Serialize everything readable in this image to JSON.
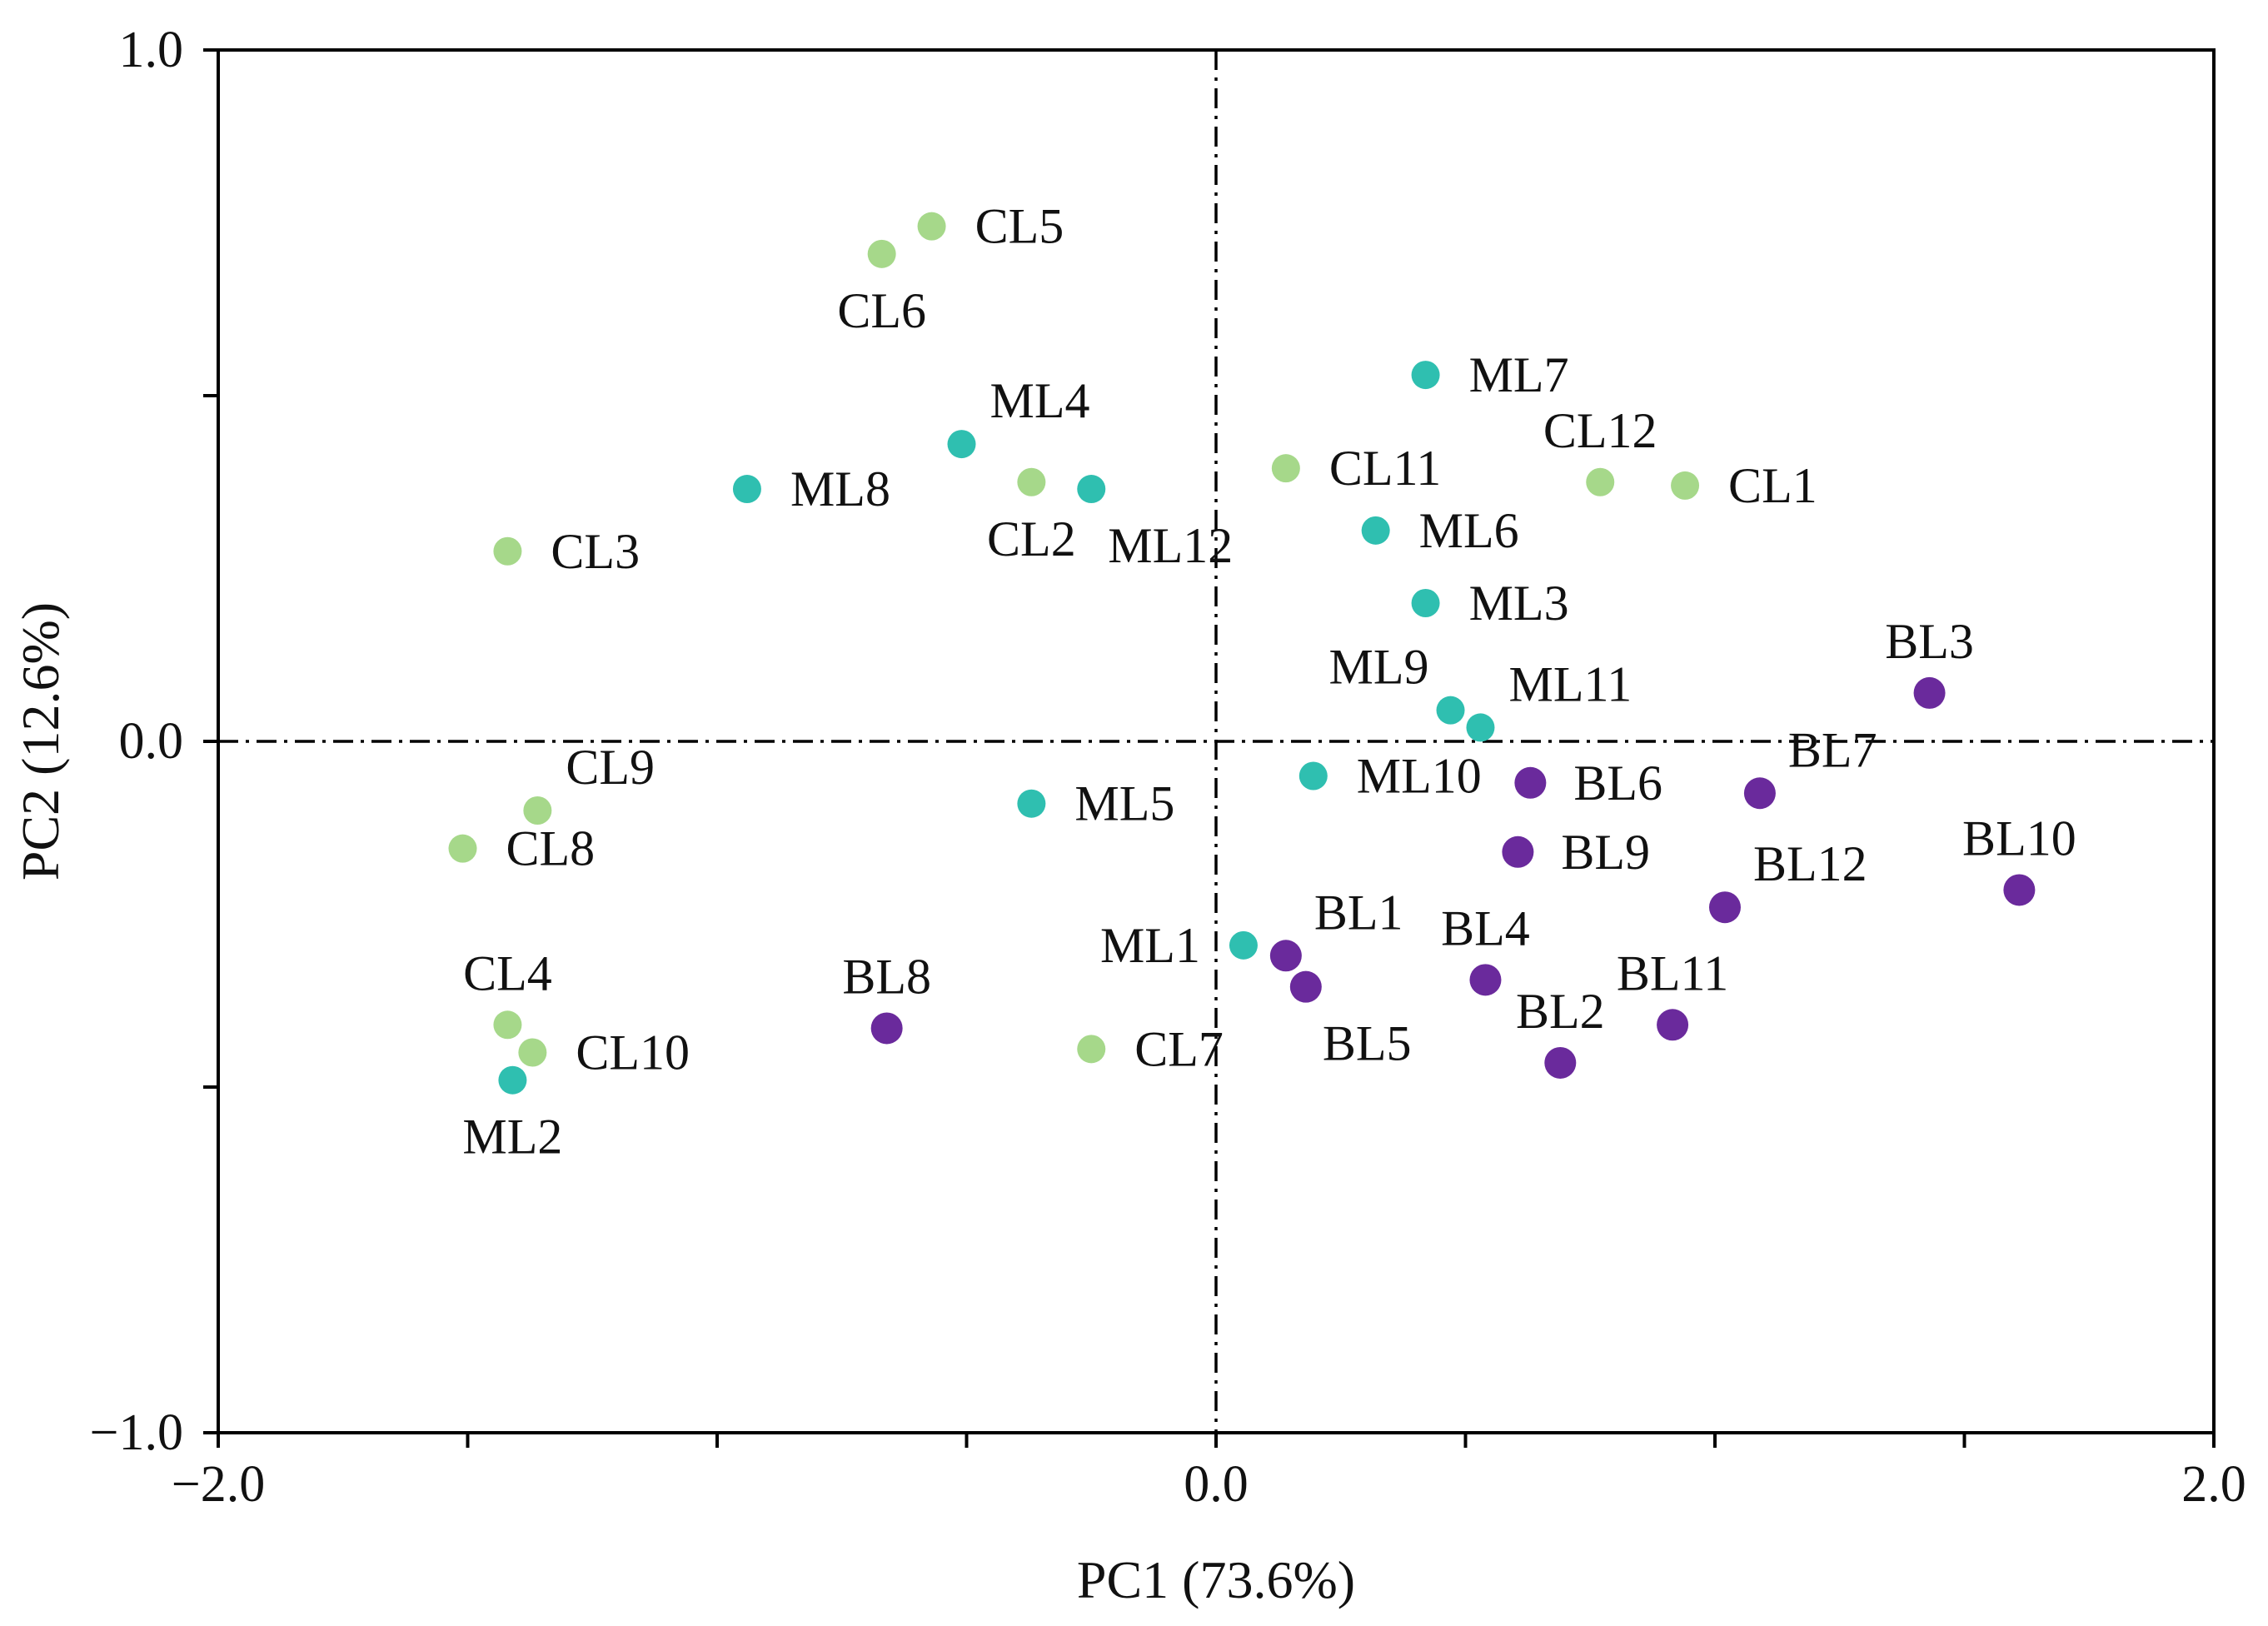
{
  "chart_data": {
    "type": "scatter",
    "title": "",
    "xlabel": "PC1 (73.6%)",
    "ylabel": "PC2 (12.6%)",
    "xlim": [
      -2.0,
      2.0
    ],
    "ylim": [
      -1.0,
      1.0
    ],
    "x_ticks": [
      -2.0,
      -1.5,
      -1.0,
      -0.5,
      0.0,
      0.5,
      1.0,
      1.5,
      2.0
    ],
    "x_tick_labels": [
      {
        "value": -2.0,
        "text": "−2.0"
      },
      {
        "value": 0.0,
        "text": "0.0"
      },
      {
        "value": 2.0,
        "text": "2.0"
      }
    ],
    "y_ticks": [
      -1.0,
      -0.5,
      0.0,
      0.5,
      1.0
    ],
    "y_tick_labels": [
      {
        "value": 1.0,
        "text": "1.0"
      },
      {
        "value": 0.0,
        "text": "0.0"
      },
      {
        "value": -1.0,
        "text": "−1.0"
      }
    ],
    "reference_lines": {
      "x": 0.0,
      "y": 0.0
    },
    "grid": false,
    "legend": "none",
    "series": [
      {
        "name": "CL",
        "color": "#a6d88a",
        "points": [
          {
            "label": "CL1",
            "x": 0.94,
            "y": 0.37,
            "label_pos": "right"
          },
          {
            "label": "CL2",
            "x": -0.37,
            "y": 0.375,
            "label_pos": "below"
          },
          {
            "label": "CL3",
            "x": -1.42,
            "y": 0.275,
            "label_pos": "right"
          },
          {
            "label": "CL4",
            "x": -1.42,
            "y": -0.41,
            "label_pos": "above"
          },
          {
            "label": "CL5",
            "x": -0.57,
            "y": 0.745,
            "label_pos": "right"
          },
          {
            "label": "CL6",
            "x": -0.67,
            "y": 0.705,
            "label_pos": "below"
          },
          {
            "label": "CL7",
            "x": -0.25,
            "y": -0.445,
            "label_pos": "right"
          },
          {
            "label": "CL8",
            "x": -1.51,
            "y": -0.155,
            "label_pos": "right"
          },
          {
            "label": "CL9",
            "x": -1.36,
            "y": -0.1,
            "label_pos": "above-right"
          },
          {
            "label": "CL10",
            "x": -1.37,
            "y": -0.45,
            "label_pos": "right"
          },
          {
            "label": "CL11",
            "x": 0.14,
            "y": 0.395,
            "label_pos": "right"
          },
          {
            "label": "CL12",
            "x": 0.77,
            "y": 0.375,
            "label_pos": "above"
          }
        ]
      },
      {
        "name": "ML",
        "color": "#2fbfb0",
        "points": [
          {
            "label": "ML1",
            "x": 0.055,
            "y": -0.295,
            "label_pos": "left"
          },
          {
            "label": "ML2",
            "x": -1.41,
            "y": -0.49,
            "label_pos": "below"
          },
          {
            "label": "ML3",
            "x": 0.42,
            "y": 0.2,
            "label_pos": "right"
          },
          {
            "label": "ML4",
            "x": -0.51,
            "y": 0.43,
            "label_pos": "above-right"
          },
          {
            "label": "ML5",
            "x": -0.37,
            "y": -0.09,
            "label_pos": "right"
          },
          {
            "label": "ML6",
            "x": 0.32,
            "y": 0.305,
            "label_pos": "right"
          },
          {
            "label": "ML7",
            "x": 0.42,
            "y": 0.53,
            "label_pos": "right"
          },
          {
            "label": "ML8",
            "x": -0.94,
            "y": 0.365,
            "label_pos": "right"
          },
          {
            "label": "ML9",
            "x": 0.47,
            "y": 0.045,
            "label_pos": "above-left"
          },
          {
            "label": "ML10",
            "x": 0.195,
            "y": -0.05,
            "label_pos": "right"
          },
          {
            "label": "ML11",
            "x": 0.53,
            "y": 0.02,
            "label_pos": "above-right"
          },
          {
            "label": "ML12",
            "x": -0.25,
            "y": 0.365,
            "label_pos": "below-right"
          }
        ]
      },
      {
        "name": "BL",
        "color": "#6a2a9c",
        "points": [
          {
            "label": "BL1",
            "x": 0.14,
            "y": -0.31,
            "label_pos": "above-right"
          },
          {
            "label": "BL2",
            "x": 0.69,
            "y": -0.465,
            "label_pos": "above"
          },
          {
            "label": "BL3",
            "x": 1.43,
            "y": 0.07,
            "label_pos": "above"
          },
          {
            "label": "BL4",
            "x": 0.54,
            "y": -0.345,
            "label_pos": "above"
          },
          {
            "label": "BL5",
            "x": 0.18,
            "y": -0.355,
            "label_pos": "below-right"
          },
          {
            "label": "BL6",
            "x": 0.63,
            "y": -0.06,
            "label_pos": "right"
          },
          {
            "label": "BL7",
            "x": 1.09,
            "y": -0.075,
            "label_pos": "above-right"
          },
          {
            "label": "BL8",
            "x": -0.66,
            "y": -0.415,
            "label_pos": "above"
          },
          {
            "label": "BL9",
            "x": 0.605,
            "y": -0.16,
            "label_pos": "right"
          },
          {
            "label": "BL10",
            "x": 1.61,
            "y": -0.215,
            "label_pos": "above"
          },
          {
            "label": "BL11",
            "x": 0.915,
            "y": -0.41,
            "label_pos": "above"
          },
          {
            "label": "BL12",
            "x": 1.02,
            "y": -0.24,
            "label_pos": "above-right"
          }
        ]
      }
    ]
  }
}
